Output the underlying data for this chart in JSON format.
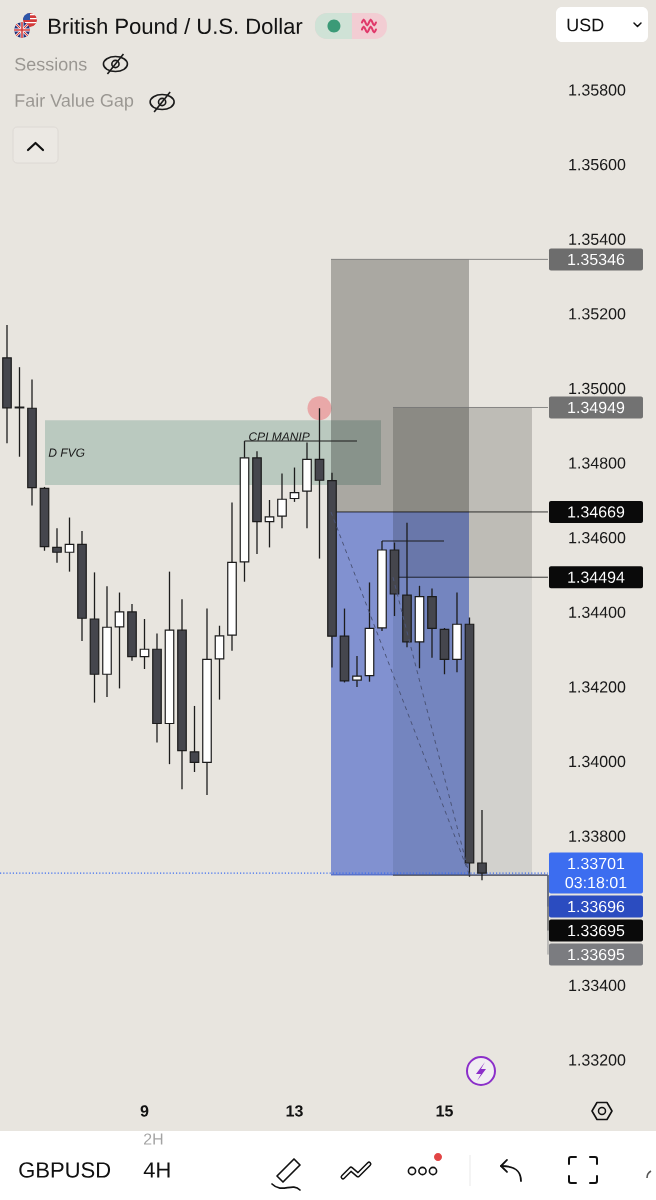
{
  "chart_data": {
    "type": "candlestick",
    "title": "British Pound / U.S. Dollar",
    "categories": [
      null,
      null,
      null,
      null,
      null,
      null,
      null,
      null,
      null,
      null,
      null,
      "9",
      null,
      null,
      null,
      null,
      null,
      null,
      null,
      null,
      null,
      null,
      null,
      "13",
      null,
      null,
      null,
      null,
      null,
      null,
      null,
      null,
      null,
      null,
      null,
      "15",
      null,
      null,
      null
    ],
    "ohlc": [
      [
        1.35082,
        1.3517,
        1.34853,
        1.34948
      ],
      [
        1.3495,
        1.35057,
        1.34817,
        1.34948
      ],
      [
        1.34947,
        1.35024,
        1.34686,
        1.34734
      ],
      [
        1.34732,
        1.34736,
        1.34565,
        1.34576
      ],
      [
        1.34574,
        1.34625,
        1.34533,
        1.34561
      ],
      [
        1.34561,
        1.34654,
        1.34509,
        1.34582
      ],
      [
        1.34582,
        1.34618,
        1.34323,
        1.34384
      ],
      [
        1.34382,
        1.34507,
        1.34158,
        1.34234
      ],
      [
        1.34234,
        1.3447,
        1.34173,
        1.3436
      ],
      [
        1.34361,
        1.34453,
        1.34196,
        1.34401
      ],
      [
        1.34401,
        1.34422,
        1.3427,
        1.34281
      ],
      [
        1.34281,
        1.34382,
        1.34248,
        1.34301
      ],
      [
        1.34301,
        1.34343,
        1.34051,
        1.34102
      ],
      [
        1.34102,
        1.34509,
        1.33993,
        1.34352
      ],
      [
        1.34352,
        1.34435,
        1.33926,
        1.34029
      ],
      [
        1.34026,
        1.34149,
        1.33972,
        1.33998
      ],
      [
        1.33998,
        1.3441,
        1.3391,
        1.34274
      ],
      [
        1.34275,
        1.34364,
        1.34166,
        1.34337
      ],
      [
        1.34339,
        1.34694,
        1.34297,
        1.34534
      ],
      [
        1.34535,
        1.34859,
        1.34482,
        1.34814
      ],
      [
        1.34814,
        1.34832,
        1.34556,
        1.34643
      ],
      [
        1.34643,
        1.34701,
        1.34574,
        1.34656
      ],
      [
        1.34658,
        1.34772,
        1.34625,
        1.34703
      ],
      [
        1.34705,
        1.34788,
        1.34696,
        1.34721
      ],
      [
        1.34725,
        1.34855,
        1.34625,
        1.3481
      ],
      [
        1.3481,
        1.34947,
        1.34544,
        1.34754
      ],
      [
        1.34753,
        1.34774,
        1.34252,
        1.34336
      ],
      [
        1.34336,
        1.3441,
        1.34212,
        1.34216
      ],
      [
        1.34218,
        1.34283,
        1.342,
        1.34229
      ],
      [
        1.3423,
        1.3448,
        1.34214,
        1.34357
      ],
      [
        1.34358,
        1.34591,
        1.3435,
        1.34567
      ],
      [
        1.34567,
        1.34587,
        1.3439,
        1.34449
      ],
      [
        1.34446,
        1.3464,
        1.34306,
        1.34321
      ],
      [
        1.34321,
        1.34471,
        1.3425,
        1.34442
      ],
      [
        1.34442,
        1.34464,
        1.34278,
        1.34357
      ],
      [
        1.34354,
        1.34358,
        1.34234,
        1.34274
      ],
      [
        1.34274,
        1.34453,
        1.34239,
        1.34368
      ],
      [
        1.34368,
        1.34386,
        1.33691,
        1.33728
      ],
      [
        1.33728,
        1.3387,
        1.33682,
        1.33701
      ]
    ],
    "colors": [
      "#45464d",
      "#45464d",
      "#45464d",
      "#45464d",
      "#45464d",
      "#ffffff",
      "#45464d",
      "#45464d",
      "#ffffff",
      "#ffffff",
      "#45464d",
      "#ffffff",
      "#45464d",
      "#ffffff",
      "#45464d",
      "#45464d",
      "#ffffff",
      "#ffffff",
      "#ffffff",
      "#ffffff",
      "#45464d",
      "#ffffff",
      "#ffffff",
      "#ffffff",
      "#ffffff",
      "#45464d",
      "#45464d",
      "#45464d",
      "#ffffff",
      "#ffffff",
      "#ffffff",
      "#45464d",
      "#45464d",
      "#ffffff",
      "#45464d",
      "#45464d",
      "#ffffff",
      "#45464d",
      "#45464d"
    ],
    "ylim": [
      1.332,
      1.358
    ],
    "yticks": [
      {
        "value": 1.332,
        "label": "1.33200"
      },
      {
        "value": 1.334,
        "label": "1.33400"
      },
      {
        "value": 1.338,
        "label": "1.33800"
      },
      {
        "value": 1.34,
        "label": "1.34000"
      },
      {
        "value": 1.342,
        "label": "1.34200"
      },
      {
        "value": 1.344,
        "label": "1.34400"
      },
      {
        "value": 1.346,
        "label": "1.34600"
      },
      {
        "value": 1.348,
        "label": "1.34800"
      },
      {
        "value": 1.35,
        "label": "1.35000"
      },
      {
        "value": 1.352,
        "label": "1.35200"
      },
      {
        "value": 1.354,
        "label": "1.35400"
      },
      {
        "value": 1.356,
        "label": "1.35600"
      },
      {
        "value": 1.358,
        "label": "1.35800"
      }
    ],
    "bands": [
      {
        "axis": "y",
        "from": 1.34741,
        "to": 1.34915,
        "label": "D FVG",
        "color": "#bac9bf"
      },
      {
        "axis": "y",
        "from": 1.34669,
        "to": 1.35346,
        "color": "#aaa8a3"
      },
      {
        "axis": "y",
        "from": 1.33696,
        "to": 1.34669,
        "color": "#8191d0"
      },
      {
        "axis": "y",
        "from": 1.34494,
        "to": 1.34949,
        "color": "#bebcb7"
      },
      {
        "axis": "y",
        "from": 1.33695,
        "to": 1.34494,
        "color": "#d2d1cd"
      }
    ],
    "ref_lines": [
      {
        "axis": "y",
        "value": 1.35346,
        "label": "1.35346",
        "color": "#6d6d6d"
      },
      {
        "axis": "y",
        "value": 1.34949,
        "label": "1.34949",
        "color": "#727272"
      },
      {
        "axis": "y",
        "value": 1.34669,
        "label": "1.34669",
        "color": "#0a0a0a"
      },
      {
        "axis": "y",
        "value": 1.34494,
        "label": "1.34494",
        "color": "#0a0a0a"
      },
      {
        "axis": "y",
        "value": 1.33701,
        "label": "1.33701",
        "color": "#3c6df0",
        "line_style": "dotted"
      },
      {
        "axis": "y",
        "value": 1.33696,
        "label": "1.33696",
        "color": "#2b4cc0"
      },
      {
        "axis": "y",
        "value": 1.33695,
        "label": "1.33695",
        "color": "#0a0a0a"
      },
      {
        "axis": "y",
        "value": 1.33695,
        "label": "1.33695",
        "color": "#7b7c80"
      },
      {
        "axis": "y",
        "value": 1.34859,
        "label": "CPI MANIP",
        "color": "#1c1c1c",
        "line_style": "solid"
      },
      {
        "axis": "y",
        "value": 1.34591,
        "color": "#1c1c1c",
        "line_style": "solid"
      }
    ],
    "annotations": [
      "03:18:01",
      "Sessions",
      "Fair Value Gap",
      "USD",
      "GBPUSD",
      "2H",
      "4H"
    ]
  }
}
